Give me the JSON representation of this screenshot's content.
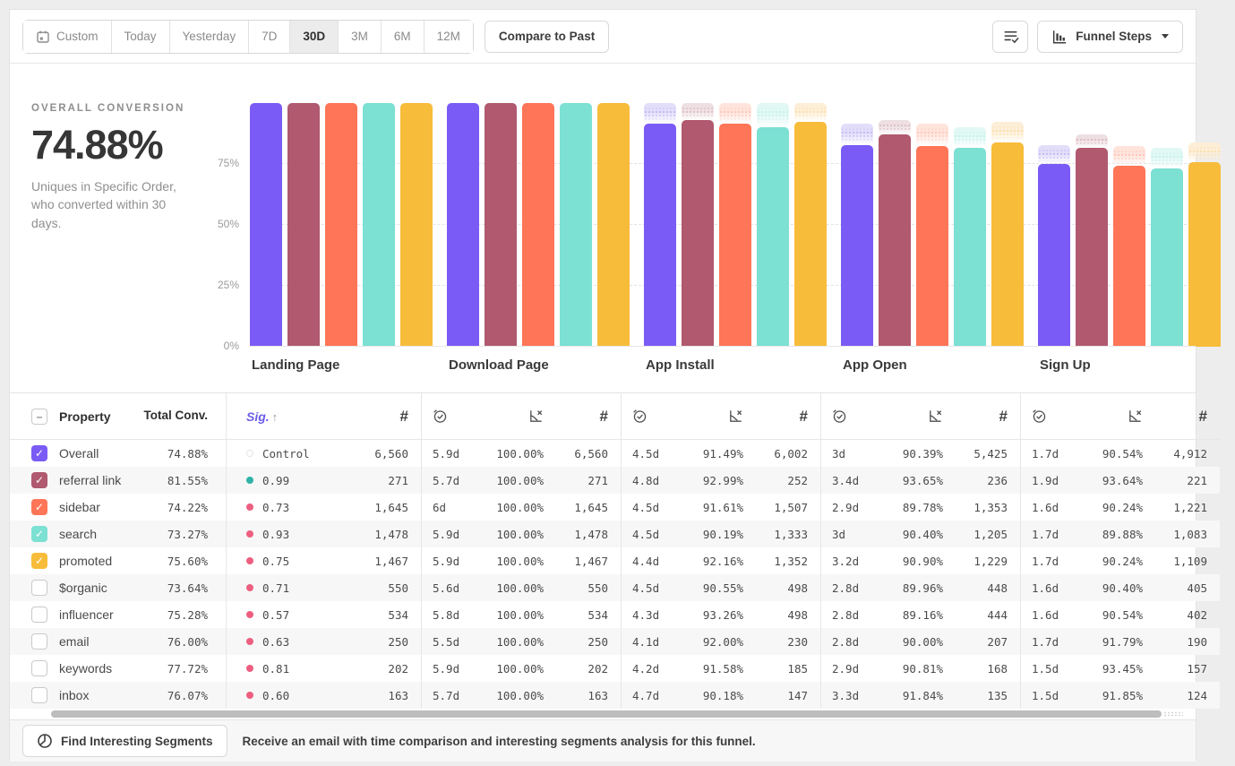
{
  "toolbar": {
    "date_ranges": [
      "Custom",
      "Today",
      "Yesterday",
      "7D",
      "30D",
      "3M",
      "6M",
      "12M"
    ],
    "active_range": "30D",
    "compare_label": "Compare to Past",
    "funnel_steps_label": "Funnel Steps"
  },
  "summary": {
    "label": "OVERALL CONVERSION",
    "value": "74.88%",
    "description": "Uniques in Specific Order, who converted within 30 days."
  },
  "chart_data": {
    "type": "bar",
    "categories": [
      "Landing Page",
      "Download Page",
      "App Install",
      "App Open",
      "Sign Up"
    ],
    "yticks": [
      75,
      50,
      25,
      0
    ],
    "ylim": [
      0,
      100
    ],
    "grid": "dashed-horizontal",
    "legend": "none (series colors match table row checkboxes)",
    "note": "values are cumulative conversion % per funnel step; faded cap above each bar shows previous step level (drop-off)",
    "series": [
      {
        "name": "Overall",
        "color": "#7b5bf5",
        "tint": "#e2def9",
        "values": [
          100,
          100,
          91.49,
          82.7,
          74.88
        ]
      },
      {
        "name": "referral link",
        "color": "#b0596f",
        "tint": "#eddfe2",
        "values": [
          100,
          100,
          92.99,
          87.08,
          81.55
        ]
      },
      {
        "name": "sidebar",
        "color": "#ff7557",
        "tint": "#ffe4dc",
        "values": [
          100,
          100,
          91.61,
          82.25,
          74.22
        ]
      },
      {
        "name": "search",
        "color": "#7ce0d3",
        "tint": "#e1f8f4",
        "values": [
          100,
          100,
          90.19,
          81.53,
          73.27
        ]
      },
      {
        "name": "promoted",
        "color": "#f8bc3b",
        "tint": "#fdeed7",
        "values": [
          100,
          100,
          92.16,
          83.77,
          75.6
        ]
      }
    ]
  },
  "table": {
    "headers": {
      "property": "Property",
      "total_conv": "Total Conv.",
      "sig": "Sig.",
      "sig_sort_arrow": "↑",
      "count_symbol": "#",
      "step_metric_icons": [
        "avg-time-icon",
        "conversion-dropoff-chart-icon",
        "count-symbol"
      ]
    },
    "rows": [
      {
        "property": "Overall",
        "checked": true,
        "color": "#7b5bf5",
        "total_conv": "74.88%",
        "sig": "Control",
        "sig_type": "control",
        "landing_count": "6,560",
        "steps": [
          {
            "time": "5.9d",
            "conv": "100.00%",
            "count": "6,560"
          },
          {
            "time": "4.5d",
            "conv": "91.49%",
            "count": "6,002"
          },
          {
            "time": "3d",
            "conv": "90.39%",
            "count": "5,425"
          },
          {
            "time": "1.7d",
            "conv": "90.54%",
            "count": "4,912"
          }
        ]
      },
      {
        "property": "referral link",
        "checked": true,
        "color": "#b0596f",
        "total_conv": "81.55%",
        "sig": "0.99",
        "sig_type": "significant",
        "landing_count": "271",
        "steps": [
          {
            "time": "5.7d",
            "conv": "100.00%",
            "count": "271"
          },
          {
            "time": "4.8d",
            "conv": "92.99%",
            "count": "252"
          },
          {
            "time": "3.4d",
            "conv": "93.65%",
            "count": "236"
          },
          {
            "time": "1.9d",
            "conv": "93.64%",
            "count": "221"
          }
        ]
      },
      {
        "property": "sidebar",
        "checked": true,
        "color": "#ff7557",
        "total_conv": "74.22%",
        "sig": "0.73",
        "sig_type": "not-significant",
        "landing_count": "1,645",
        "steps": [
          {
            "time": "6d",
            "conv": "100.00%",
            "count": "1,645"
          },
          {
            "time": "4.5d",
            "conv": "91.61%",
            "count": "1,507"
          },
          {
            "time": "2.9d",
            "conv": "89.78%",
            "count": "1,353"
          },
          {
            "time": "1.6d",
            "conv": "90.24%",
            "count": "1,221"
          }
        ]
      },
      {
        "property": "search",
        "checked": true,
        "color": "#7ce0d3",
        "total_conv": "73.27%",
        "sig": "0.93",
        "sig_type": "not-significant",
        "landing_count": "1,478",
        "steps": [
          {
            "time": "5.9d",
            "conv": "100.00%",
            "count": "1,478"
          },
          {
            "time": "4.5d",
            "conv": "90.19%",
            "count": "1,333"
          },
          {
            "time": "3d",
            "conv": "90.40%",
            "count": "1,205"
          },
          {
            "time": "1.7d",
            "conv": "89.88%",
            "count": "1,083"
          }
        ]
      },
      {
        "property": "promoted",
        "checked": true,
        "color": "#f8bc3b",
        "total_conv": "75.60%",
        "sig": "0.75",
        "sig_type": "not-significant",
        "landing_count": "1,467",
        "steps": [
          {
            "time": "5.9d",
            "conv": "100.00%",
            "count": "1,467"
          },
          {
            "time": "4.4d",
            "conv": "92.16%",
            "count": "1,352"
          },
          {
            "time": "3.2d",
            "conv": "90.90%",
            "count": "1,229"
          },
          {
            "time": "1.7d",
            "conv": "90.24%",
            "count": "1,109"
          }
        ]
      },
      {
        "property": "$organic",
        "checked": false,
        "total_conv": "73.64%",
        "sig": "0.71",
        "sig_type": "not-significant",
        "landing_count": "550",
        "steps": [
          {
            "time": "5.6d",
            "conv": "100.00%",
            "count": "550"
          },
          {
            "time": "4.5d",
            "conv": "90.55%",
            "count": "498"
          },
          {
            "time": "2.8d",
            "conv": "89.96%",
            "count": "448"
          },
          {
            "time": "1.6d",
            "conv": "90.40%",
            "count": "405"
          }
        ]
      },
      {
        "property": "influencer",
        "checked": false,
        "total_conv": "75.28%",
        "sig": "0.57",
        "sig_type": "not-significant",
        "landing_count": "534",
        "steps": [
          {
            "time": "5.8d",
            "conv": "100.00%",
            "count": "534"
          },
          {
            "time": "4.3d",
            "conv": "93.26%",
            "count": "498"
          },
          {
            "time": "2.8d",
            "conv": "89.16%",
            "count": "444"
          },
          {
            "time": "1.6d",
            "conv": "90.54%",
            "count": "402"
          }
        ]
      },
      {
        "property": "email",
        "checked": false,
        "total_conv": "76.00%",
        "sig": "0.63",
        "sig_type": "not-significant",
        "landing_count": "250",
        "steps": [
          {
            "time": "5.5d",
            "conv": "100.00%",
            "count": "250"
          },
          {
            "time": "4.1d",
            "conv": "92.00%",
            "count": "230"
          },
          {
            "time": "2.8d",
            "conv": "90.00%",
            "count": "207"
          },
          {
            "time": "1.7d",
            "conv": "91.79%",
            "count": "190"
          }
        ]
      },
      {
        "property": "keywords",
        "checked": false,
        "total_conv": "77.72%",
        "sig": "0.81",
        "sig_type": "not-significant",
        "landing_count": "202",
        "steps": [
          {
            "time": "5.9d",
            "conv": "100.00%",
            "count": "202"
          },
          {
            "time": "4.2d",
            "conv": "91.58%",
            "count": "185"
          },
          {
            "time": "2.9d",
            "conv": "90.81%",
            "count": "168"
          },
          {
            "time": "1.5d",
            "conv": "93.45%",
            "count": "157"
          }
        ]
      },
      {
        "property": "inbox",
        "checked": false,
        "total_conv": "76.07%",
        "sig": "0.60",
        "sig_type": "not-significant",
        "landing_count": "163",
        "steps": [
          {
            "time": "5.7d",
            "conv": "100.00%",
            "count": "163"
          },
          {
            "time": "4.7d",
            "conv": "90.18%",
            "count": "147"
          },
          {
            "time": "3.3d",
            "conv": "91.84%",
            "count": "135"
          },
          {
            "time": "1.5d",
            "conv": "91.85%",
            "count": "124"
          }
        ]
      }
    ]
  },
  "footer": {
    "button_label": "Find Interesting Segments",
    "message": "Receive an email with time comparison and interesting segments analysis for this funnel."
  },
  "colors": {
    "significant": "#2fb3a8",
    "not_significant": "#ec5f80",
    "sig_header": "#6c5ce7"
  }
}
